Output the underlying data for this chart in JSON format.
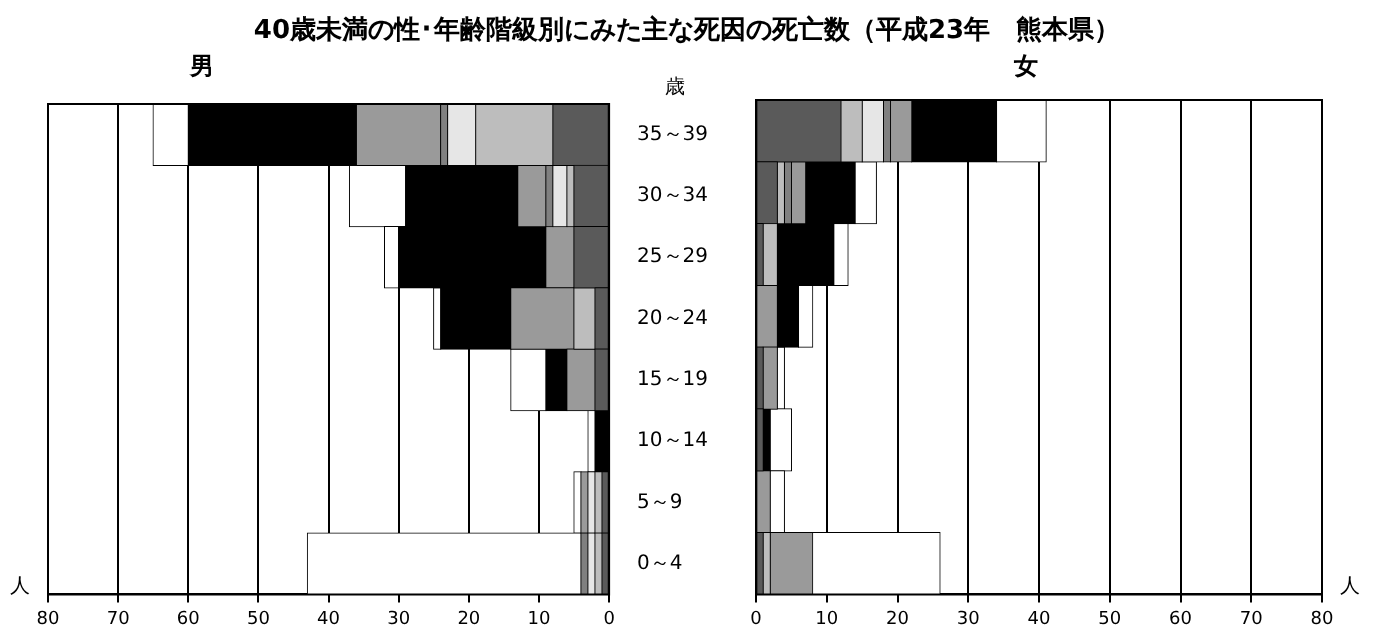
{
  "chart_data": [
    {
      "type": "bar",
      "orientation": "horizontal",
      "stacked": true,
      "title": "40歳未満の性･年齢階級別にみた主な死因の死亡数（平成23年　熊本県）",
      "subtitle": "男",
      "ylabel": "歳",
      "xlabel": "人",
      "categories": [
        "35～39",
        "30～34",
        "25～29",
        "20～24",
        "15～19",
        "10～14",
        "5～9",
        "0～4"
      ],
      "xlim": [
        80,
        0
      ],
      "xticks": [
        80,
        70,
        60,
        50,
        40,
        30,
        20,
        10,
        0
      ],
      "grid": "x",
      "legend": false,
      "series": [
        {
          "color": "#5a5a5a",
          "values": [
            8,
            5,
            5,
            2,
            2,
            0,
            1,
            1
          ]
        },
        {
          "color": "#bdbdbd",
          "values": [
            11,
            1,
            0,
            3,
            0,
            0,
            1,
            1
          ]
        },
        {
          "color": "#e6e6e6",
          "values": [
            4,
            2,
            0,
            0,
            0,
            0,
            1,
            1
          ]
        },
        {
          "color": "#808080",
          "values": [
            1,
            1,
            0,
            0,
            0,
            0,
            0,
            1
          ]
        },
        {
          "color": "#9a9a9a",
          "values": [
            12,
            4,
            4,
            9,
            4,
            0,
            1,
            0
          ]
        },
        {
          "color": "#000000",
          "values": [
            24,
            16,
            21,
            10,
            3,
            2,
            0,
            0
          ]
        },
        {
          "color": "#ffffff",
          "values": [
            5,
            8,
            2,
            1,
            5,
            1,
            1,
            39
          ]
        }
      ]
    },
    {
      "type": "bar",
      "orientation": "horizontal",
      "stacked": true,
      "title": "女",
      "xlabel": "人",
      "xlim": [
        0,
        80
      ],
      "xticks": [
        0,
        10,
        20,
        30,
        40,
        50,
        60,
        70,
        80
      ],
      "grid": "x",
      "legend": false,
      "tick_labels": "x",
      "series": [
        {
          "color": "#5a5a5a",
          "values": [
            12,
            3,
            1,
            0,
            1,
            1,
            0,
            1
          ]
        },
        {
          "color": "#bdbdbd",
          "values": [
            3,
            1,
            2,
            0,
            0,
            0,
            0,
            1
          ]
        },
        {
          "color": "#e6e6e6",
          "values": [
            3,
            0,
            0,
            0,
            0,
            0,
            0,
            0
          ]
        },
        {
          "color": "#808080",
          "values": [
            1,
            1,
            0,
            0,
            0,
            0,
            0,
            0
          ]
        },
        {
          "color": "#9a9a9a",
          "values": [
            3,
            2,
            0,
            3,
            2,
            0,
            2,
            6
          ]
        },
        {
          "color": "#000000",
          "values": [
            12,
            7,
            8,
            3,
            0,
            1,
            0,
            0
          ]
        },
        {
          "color": "#ffffff",
          "values": [
            7,
            3,
            2,
            2,
            1,
            3,
            2,
            18
          ]
        }
      ]
    }
  ]
}
